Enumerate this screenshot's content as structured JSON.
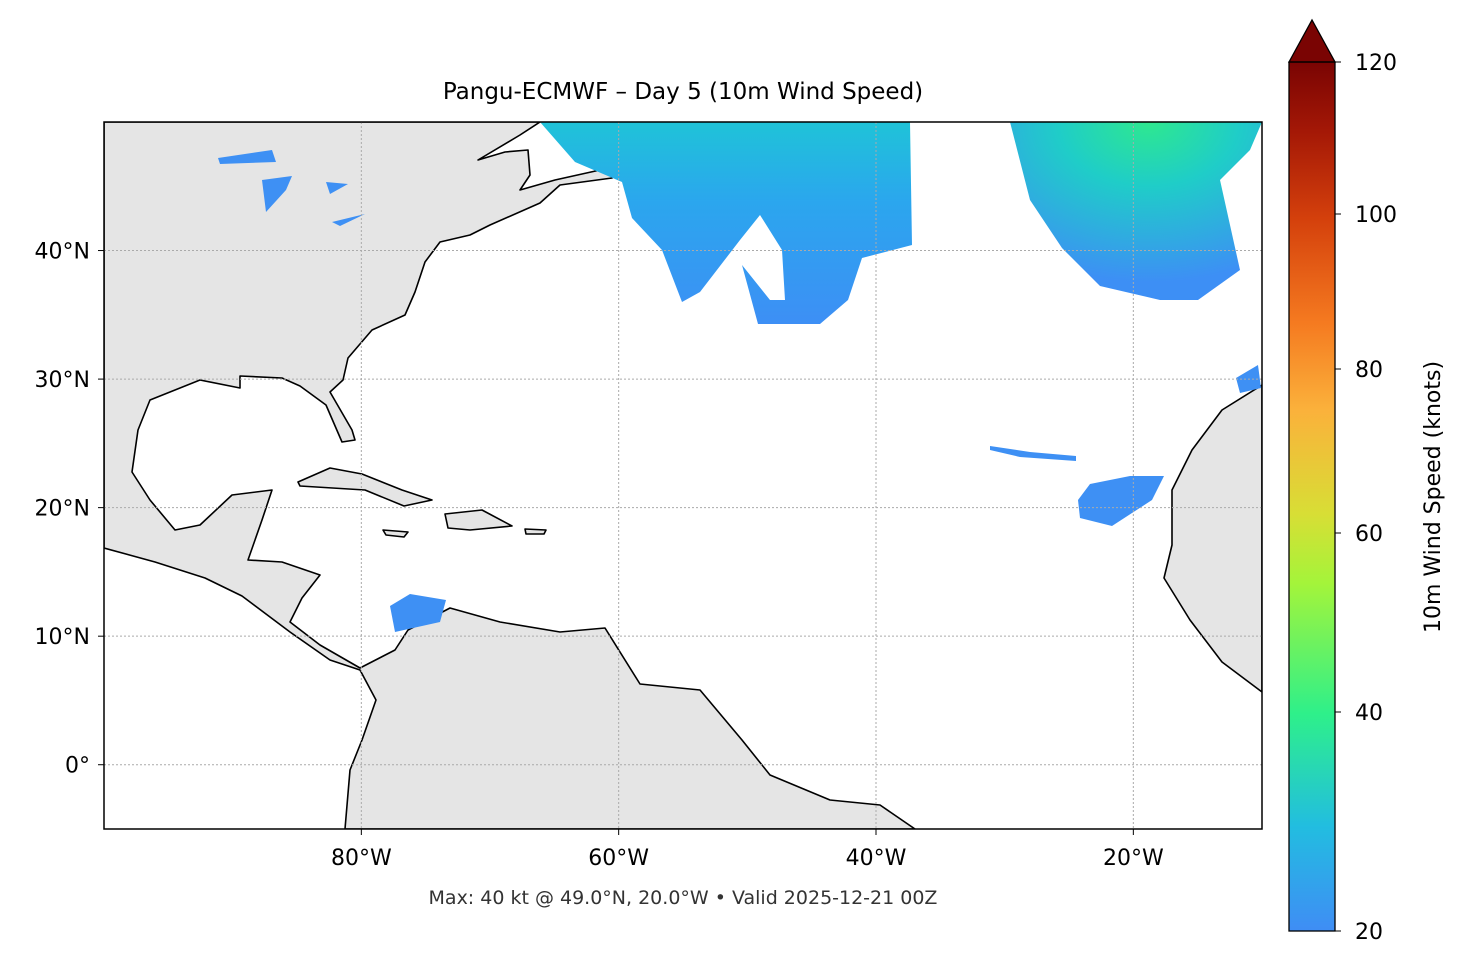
{
  "title": "Pangu-ECMWF – Day 5 (10m Wind Speed)",
  "footer": "Max: 40 kt @ 49.0°N, 20.0°W • Valid 2025-12-21 00Z",
  "map": {
    "projection": "PlateCarree",
    "lon_range": [
      -100,
      -10
    ],
    "lat_range": [
      -5,
      50
    ],
    "gridlines": true,
    "land_color": "#e5e5e5",
    "x_ticks": [
      {
        "value": -80,
        "label": "80°W"
      },
      {
        "value": -60,
        "label": "60°W"
      },
      {
        "value": -40,
        "label": "40°W"
      },
      {
        "value": -20,
        "label": "20°W"
      }
    ],
    "y_ticks": [
      {
        "value": 40,
        "label": "40°N"
      },
      {
        "value": 30,
        "label": "30°N"
      },
      {
        "value": 20,
        "label": "20°N"
      },
      {
        "value": 10,
        "label": "10°N"
      },
      {
        "value": 0,
        "label": "0°"
      }
    ],
    "max_marker": {
      "value_kt": 40,
      "lat": 49.0,
      "lon": -20.0
    }
  },
  "colorbar": {
    "label": "10m Wind Speed (knots)",
    "colormap": "turbo",
    "range": [
      20,
      120
    ],
    "extend": "max",
    "ticks": [
      {
        "value": 20,
        "label": "20"
      },
      {
        "value": 40,
        "label": "40"
      },
      {
        "value": 60,
        "label": "60"
      },
      {
        "value": 80,
        "label": "80"
      },
      {
        "value": 100,
        "label": "100"
      },
      {
        "value": 120,
        "label": "120"
      }
    ],
    "colors": {
      "low": "#3f8df5",
      "mid": "#2ef08a",
      "high": "#7a0403"
    }
  }
}
